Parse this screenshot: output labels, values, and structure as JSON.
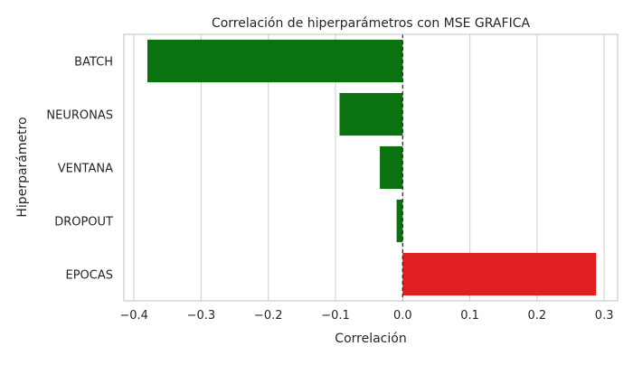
{
  "chart_data": {
    "type": "bar",
    "orientation": "horizontal",
    "title": "Correlación de hiperparámetros con MSE GRAFICA",
    "xlabel": "Correlación",
    "ylabel": "Hiperparámetro",
    "categories": [
      "BATCH",
      "NEURONAS",
      "VENTANA",
      "DROPOUT",
      "EPOCAS"
    ],
    "values": [
      -0.38,
      -0.094,
      -0.034,
      -0.009,
      0.288
    ],
    "xlim": [
      -0.415,
      0.32
    ],
    "xticks": [
      -0.4,
      -0.3,
      -0.2,
      -0.1,
      0.0,
      0.1,
      0.2,
      0.3
    ],
    "xtick_labels": [
      "−0.4",
      "−0.3",
      "−0.2",
      "−0.1",
      "0.0",
      "0.1",
      "0.2",
      "0.3"
    ],
    "grid": "x",
    "reference_line": 0,
    "colors": {
      "negative": "#0a7310",
      "positive": "#e02020",
      "grid": "#d5d5d5",
      "axes_edge": "#cccccc",
      "reference_line": "#222222"
    }
  }
}
